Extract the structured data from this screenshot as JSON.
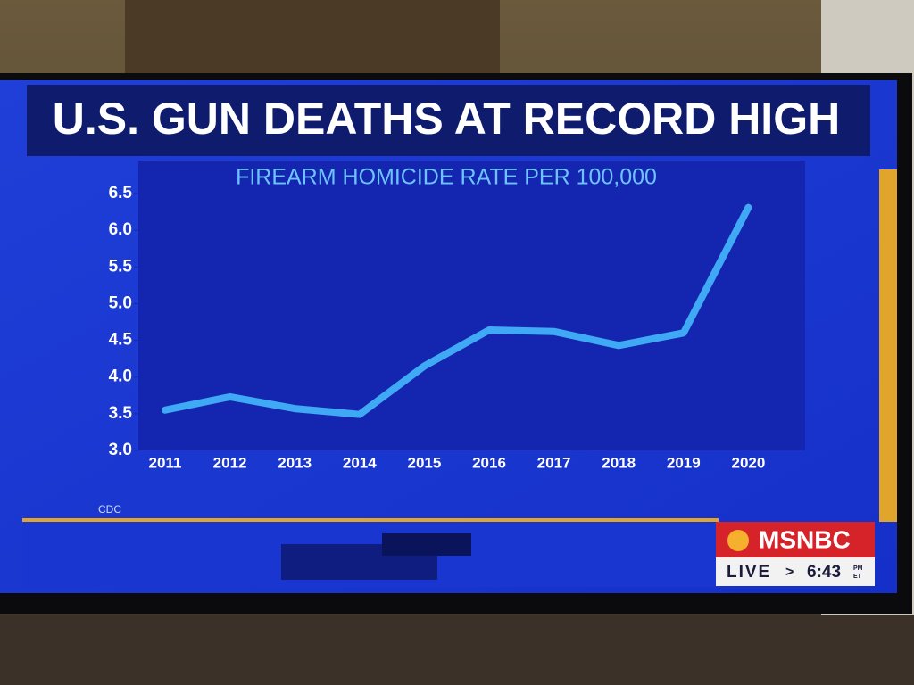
{
  "chart_data": {
    "type": "line",
    "title": "U.S. GUN DEATHS AT RECORD HIGH",
    "subtitle": "FIREARM HOMICIDE RATE PER 100,000",
    "source": "CDC",
    "categories": [
      "2011",
      "2012",
      "2013",
      "2014",
      "2015",
      "2016",
      "2017",
      "2018",
      "2019",
      "2020"
    ],
    "values": [
      3.55,
      3.73,
      3.57,
      3.49,
      4.15,
      4.64,
      4.62,
      4.43,
      4.6,
      6.31
    ],
    "color": "#3fa9f5",
    "ylim": [
      3,
      6.5
    ],
    "yticks": [
      {
        "value": 3,
        "label": "3.0"
      },
      3.5,
      {
        "value": 4,
        "label": "4.0"
      },
      4.5,
      {
        "value": 5,
        "label": "5.0"
      },
      5.5,
      {
        "value": 6,
        "label": "6.0"
      },
      6.5
    ],
    "grid": false
  },
  "broadcast": {
    "network": "MSNBC",
    "status": "LIVE",
    "separator": ">",
    "time": "6:43",
    "meridiem": "PM",
    "zone": "ET"
  }
}
